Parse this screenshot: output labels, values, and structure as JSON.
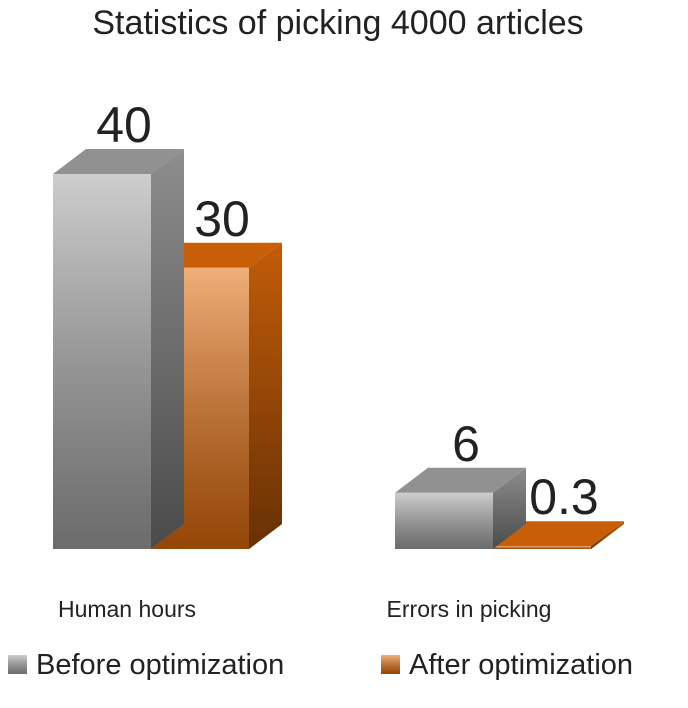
{
  "chart_data": {
    "type": "bar3d",
    "title": "Statistics of picking 4000 articles",
    "categories": [
      "Human hours",
      "Errors in picking"
    ],
    "series": [
      {
        "name": "Before optimization",
        "color": "#a6a6a6",
        "values": [
          40,
          6
        ]
      },
      {
        "name": "After optimization",
        "color": "#e46c0a",
        "values": [
          30,
          0.3
        ]
      }
    ],
    "legend": "bottom"
  }
}
